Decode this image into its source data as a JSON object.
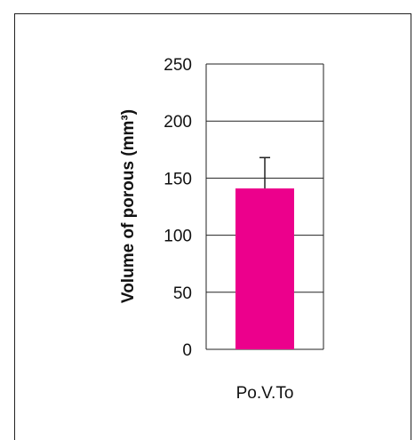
{
  "chart_data": {
    "type": "bar",
    "categories": [
      "Po.V.To"
    ],
    "values": [
      141
    ],
    "error": [
      27
    ],
    "ylabel": "Volume of porous (mm³)",
    "xlabel": "",
    "title": "",
    "ylim": [
      0,
      250
    ],
    "yticks": [
      "0",
      "50",
      "100",
      "150",
      "200",
      "250"
    ],
    "ytick_values": [
      0,
      50,
      100,
      150,
      200,
      250
    ],
    "grid": true,
    "bar_color": "#ec008c"
  }
}
